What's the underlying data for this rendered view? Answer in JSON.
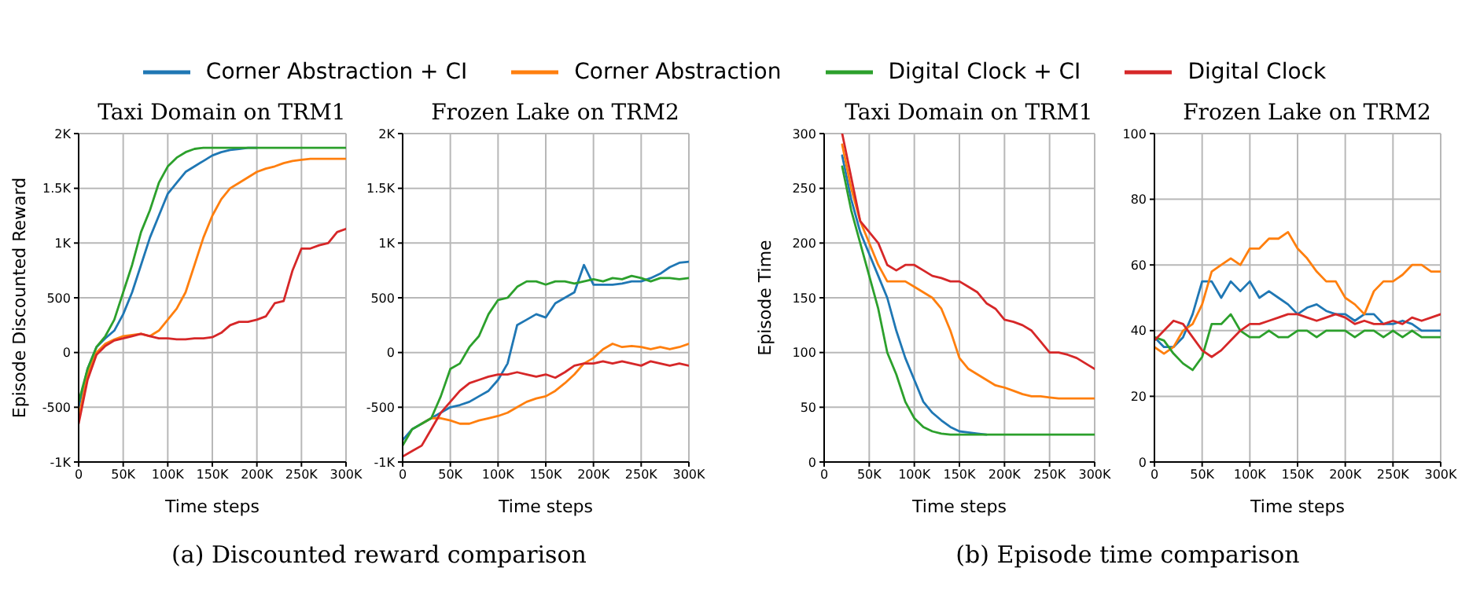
{
  "chart_data": [
    {
      "type": "line",
      "title": "Taxi Domain on TRM1",
      "xlabel": "Time steps",
      "ylabel": "Episode Discounted Reward",
      "legend": "top",
      "grid": true,
      "annotations": [
        "(a) Discounted reward comparison"
      ],
      "x": [
        0,
        10000,
        20000,
        30000,
        40000,
        50000,
        60000,
        70000,
        80000,
        90000,
        100000,
        110000,
        120000,
        130000,
        140000,
        150000,
        160000,
        170000,
        180000,
        190000,
        200000,
        210000,
        220000,
        230000,
        240000,
        250000,
        260000,
        270000,
        280000,
        290000,
        300000
      ],
      "xlim": [
        0,
        300000
      ],
      "xticks": [
        {
          "value": 0,
          "label": "0"
        },
        {
          "value": 50000,
          "label": "50K"
        },
        {
          "value": 100000,
          "label": "100K"
        },
        {
          "value": 150000,
          "label": "150K"
        },
        {
          "value": 200000,
          "label": "200K"
        },
        {
          "value": 250000,
          "label": "250K"
        },
        {
          "value": 300000,
          "label": "300K"
        }
      ],
      "ylim": [
        -1000,
        2000
      ],
      "yticks": [
        {
          "value": -1000,
          "label": "-1K"
        },
        -500,
        0,
        500,
        {
          "value": 1000,
          "label": "1K"
        },
        {
          "value": 1500,
          "label": "1.5K"
        },
        {
          "value": 2000,
          "label": "2K"
        }
      ],
      "series": [
        {
          "name": "Corner Abstraction + CI",
          "color": "#1f77b4",
          "values": [
            -500,
            -150,
            50,
            130,
            200,
            350,
            550,
            800,
            1050,
            1250,
            1450,
            1550,
            1650,
            1700,
            1750,
            1800,
            1830,
            1850,
            1860,
            1870,
            1870,
            null,
            null,
            null,
            null,
            null,
            null,
            null,
            null,
            null,
            null
          ]
        },
        {
          "name": "Corner Abstraction",
          "color": "#ff7f0e",
          "values": [
            -600,
            -200,
            0,
            80,
            120,
            150,
            160,
            170,
            150,
            200,
            300,
            400,
            550,
            800,
            1050,
            1250,
            1400,
            1500,
            1550,
            1600,
            1650,
            1680,
            1700,
            1730,
            1750,
            1760,
            1770,
            1770,
            1770,
            1770,
            1770
          ]
        },
        {
          "name": "Digital Clock + CI",
          "color": "#2ca02c",
          "values": [
            -450,
            -150,
            50,
            150,
            300,
            550,
            800,
            1100,
            1300,
            1550,
            1700,
            1780,
            1830,
            1860,
            1870,
            1870,
            1870,
            1870,
            1870,
            1870,
            1870,
            1870,
            1870,
            1870,
            1870,
            1870,
            1870,
            1870,
            1870,
            1870,
            1870
          ]
        },
        {
          "name": "Digital Clock",
          "color": "#d62728",
          "values": [
            -650,
            -250,
            -20,
            60,
            110,
            130,
            150,
            170,
            150,
            130,
            130,
            120,
            120,
            130,
            130,
            140,
            180,
            250,
            280,
            280,
            300,
            330,
            450,
            470,
            750,
            950,
            950,
            980,
            1000,
            1100,
            1130
          ]
        }
      ]
    },
    {
      "type": "line",
      "title": "Frozen Lake on TRM2",
      "xlabel": "Time steps",
      "grid": true,
      "x": [
        0,
        10000,
        20000,
        30000,
        40000,
        50000,
        60000,
        70000,
        80000,
        90000,
        100000,
        110000,
        120000,
        130000,
        140000,
        150000,
        160000,
        170000,
        180000,
        190000,
        200000,
        210000,
        220000,
        230000,
        240000,
        250000,
        260000,
        270000,
        280000,
        290000,
        300000
      ],
      "xlim": [
        0,
        300000
      ],
      "xticks": [
        {
          "value": 0,
          "label": "0"
        },
        {
          "value": 50000,
          "label": "50K"
        },
        {
          "value": 100000,
          "label": "100K"
        },
        {
          "value": 150000,
          "label": "150K"
        },
        {
          "value": 200000,
          "label": "200K"
        },
        {
          "value": 250000,
          "label": "250K"
        },
        {
          "value": 300000,
          "label": "300K"
        }
      ],
      "ylim": [
        -1000,
        2000
      ],
      "yticks": [
        {
          "value": -1000,
          "label": "-1K"
        },
        -500,
        0,
        500,
        {
          "value": 1000,
          "label": "1K"
        },
        {
          "value": 1500,
          "label": "1.5K"
        },
        {
          "value": 2000,
          "label": "2K"
        }
      ],
      "series": [
        {
          "color": "#1f77b4",
          "values": [
            -800,
            -700,
            -650,
            -600,
            -550,
            -500,
            -480,
            -450,
            -400,
            -350,
            -250,
            -100,
            250,
            300,
            350,
            320,
            450,
            500,
            550,
            800,
            620,
            620,
            620,
            630,
            650,
            650,
            680,
            720,
            780,
            820,
            830
          ]
        },
        {
          "color": "#ff7f0e",
          "values": [
            null,
            null,
            -650,
            -600,
            -600,
            -620,
            -650,
            -650,
            -620,
            -600,
            -580,
            -550,
            -500,
            -450,
            -420,
            -400,
            -350,
            -280,
            -200,
            -100,
            -50,
            30,
            80,
            50,
            60,
            50,
            30,
            50,
            30,
            50,
            80
          ]
        },
        {
          "color": "#2ca02c",
          "values": [
            -850,
            -700,
            -650,
            -600,
            -400,
            -150,
            -100,
            50,
            150,
            350,
            480,
            500,
            600,
            650,
            650,
            620,
            650,
            650,
            630,
            650,
            670,
            650,
            680,
            670,
            700,
            680,
            650,
            680,
            680,
            670,
            680
          ]
        },
        {
          "color": "#d62728",
          "values": [
            -950,
            -900,
            -850,
            -700,
            -550,
            -450,
            -350,
            -280,
            -250,
            -220,
            -200,
            -200,
            -180,
            -200,
            -220,
            -200,
            -230,
            -180,
            -120,
            -100,
            -100,
            -80,
            -100,
            -80,
            -100,
            -120,
            -80,
            -100,
            -120,
            -100,
            -120
          ]
        }
      ]
    },
    {
      "type": "line",
      "title": "Taxi Domain on TRM1",
      "xlabel": "Time steps",
      "ylabel": "Episode Time",
      "grid": true,
      "annotations": [
        "(b) Episode time comparison"
      ],
      "x": [
        20000,
        30000,
        40000,
        50000,
        60000,
        70000,
        80000,
        90000,
        100000,
        110000,
        120000,
        130000,
        140000,
        150000,
        160000,
        170000,
        180000,
        190000,
        200000,
        210000,
        220000,
        230000,
        240000,
        250000,
        260000,
        270000,
        280000,
        290000,
        300000
      ],
      "xlim": [
        0,
        300000
      ],
      "xticks": [
        {
          "value": 0,
          "label": "0"
        },
        {
          "value": 50000,
          "label": "50K"
        },
        {
          "value": 100000,
          "label": "100K"
        },
        {
          "value": 150000,
          "label": "150K"
        },
        {
          "value": 200000,
          "label": "200K"
        },
        {
          "value": 250000,
          "label": "250K"
        },
        {
          "value": 300000,
          "label": "300K"
        }
      ],
      "ylim": [
        0,
        300
      ],
      "yticks": [
        0,
        50,
        100,
        150,
        200,
        250,
        300
      ],
      "series": [
        {
          "color": "#1f77b4",
          "values": [
            280,
            240,
            210,
            190,
            170,
            150,
            120,
            95,
            75,
            55,
            45,
            38,
            32,
            28,
            27,
            26,
            25,
            null,
            null,
            null,
            null,
            null,
            null,
            null,
            null,
            null,
            null,
            null,
            null
          ]
        },
        {
          "color": "#ff7f0e",
          "values": [
            290,
            250,
            220,
            200,
            180,
            165,
            165,
            165,
            160,
            155,
            150,
            140,
            120,
            95,
            85,
            80,
            75,
            70,
            68,
            65,
            62,
            60,
            60,
            59,
            58,
            58,
            58,
            58,
            58
          ]
        },
        {
          "color": "#2ca02c",
          "values": [
            270,
            230,
            200,
            170,
            140,
            100,
            80,
            55,
            40,
            32,
            28,
            26,
            25,
            25,
            25,
            25,
            25,
            25,
            25,
            25,
            25,
            25,
            25,
            25,
            25,
            25,
            25,
            25,
            25
          ]
        },
        {
          "color": "#d62728",
          "values": [
            300,
            260,
            220,
            210,
            200,
            180,
            175,
            180,
            180,
            175,
            170,
            168,
            165,
            165,
            160,
            155,
            145,
            140,
            130,
            128,
            125,
            120,
            110,
            100,
            100,
            98,
            95,
            90,
            85
          ]
        }
      ]
    },
    {
      "type": "line",
      "title": "Frozen Lake on TRM2",
      "xlabel": "Time steps",
      "grid": true,
      "x": [
        0,
        10000,
        20000,
        30000,
        40000,
        50000,
        60000,
        70000,
        80000,
        90000,
        100000,
        110000,
        120000,
        130000,
        140000,
        150000,
        160000,
        170000,
        180000,
        190000,
        200000,
        210000,
        220000,
        230000,
        240000,
        250000,
        260000,
        270000,
        280000,
        290000,
        300000
      ],
      "xlim": [
        0,
        300000
      ],
      "xticks": [
        {
          "value": 0,
          "label": "0"
        },
        {
          "value": 50000,
          "label": "50K"
        },
        {
          "value": 100000,
          "label": "100K"
        },
        {
          "value": 150000,
          "label": "150K"
        },
        {
          "value": 200000,
          "label": "200K"
        },
        {
          "value": 250000,
          "label": "250K"
        },
        {
          "value": 300000,
          "label": "300K"
        }
      ],
      "ylim": [
        0,
        100
      ],
      "yticks": [
        0,
        20,
        40,
        60,
        80,
        100
      ],
      "series": [
        {
          "color": "#1f77b4",
          "values": [
            38,
            35,
            35,
            38,
            45,
            55,
            55,
            50,
            55,
            52,
            55,
            50,
            52,
            50,
            48,
            45,
            47,
            48,
            46,
            45,
            45,
            43,
            45,
            45,
            42,
            42,
            43,
            42,
            40,
            40,
            40
          ]
        },
        {
          "color": "#ff7f0e",
          "values": [
            35,
            33,
            35,
            40,
            42,
            48,
            58,
            60,
            62,
            60,
            65,
            65,
            68,
            68,
            70,
            65,
            62,
            58,
            55,
            55,
            50,
            48,
            45,
            52,
            55,
            55,
            57,
            60,
            60,
            58,
            58
          ]
        },
        {
          "color": "#2ca02c",
          "values": [
            38,
            37,
            33,
            30,
            28,
            32,
            42,
            42,
            45,
            40,
            38,
            38,
            40,
            38,
            38,
            40,
            40,
            38,
            40,
            40,
            40,
            38,
            40,
            40,
            38,
            40,
            38,
            40,
            38,
            38,
            38
          ]
        },
        {
          "color": "#d62728",
          "values": [
            37,
            40,
            43,
            42,
            38,
            34,
            32,
            34,
            37,
            40,
            42,
            42,
            43,
            44,
            45,
            45,
            44,
            43,
            44,
            45,
            44,
            42,
            43,
            42,
            42,
            43,
            42,
            44,
            43,
            44,
            45
          ]
        }
      ]
    }
  ]
}
